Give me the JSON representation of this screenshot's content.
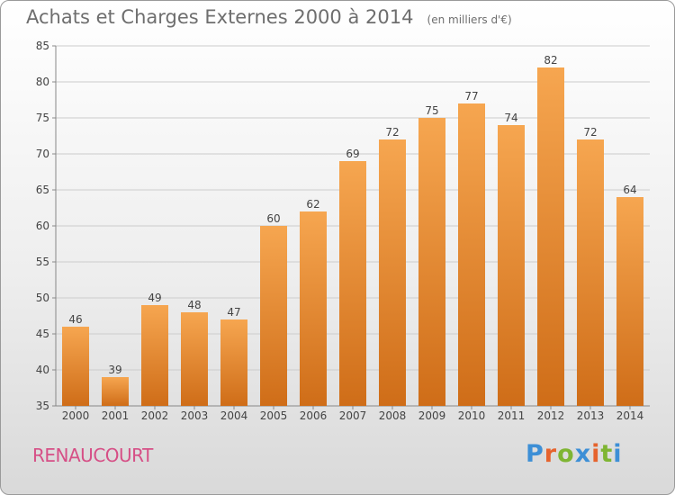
{
  "title": "Achats et Charges Externes 2000 à 2014",
  "subtitle": "(en milliers d'€)",
  "place": "RENAUCOURT",
  "logo": {
    "text": "Proxiti",
    "letter_colors": [
      "#3d8fd6",
      "#e6632d",
      "#7fb533",
      "#3d8fd6",
      "#e6632d",
      "#7fb533",
      "#3d8fd6"
    ]
  },
  "colors": {
    "bar_top": "#f6a650",
    "bar_bottom": "#cf6d18",
    "grid": "#cccccc",
    "title": "#6e6e6e",
    "place": "#d64f86"
  },
  "chart_data": {
    "type": "bar",
    "categories": [
      "2000",
      "2001",
      "2002",
      "2003",
      "2004",
      "2005",
      "2006",
      "2007",
      "2008",
      "2009",
      "2010",
      "2011",
      "2012",
      "2013",
      "2014"
    ],
    "values": [
      46,
      39,
      49,
      48,
      47,
      60,
      62,
      69,
      72,
      75,
      77,
      74,
      82,
      72,
      64
    ],
    "ylim": [
      35,
      85
    ],
    "yticks": [
      35,
      40,
      45,
      50,
      55,
      60,
      65,
      70,
      75,
      80,
      85
    ],
    "grid": true,
    "xlabel": "",
    "ylabel": ""
  }
}
